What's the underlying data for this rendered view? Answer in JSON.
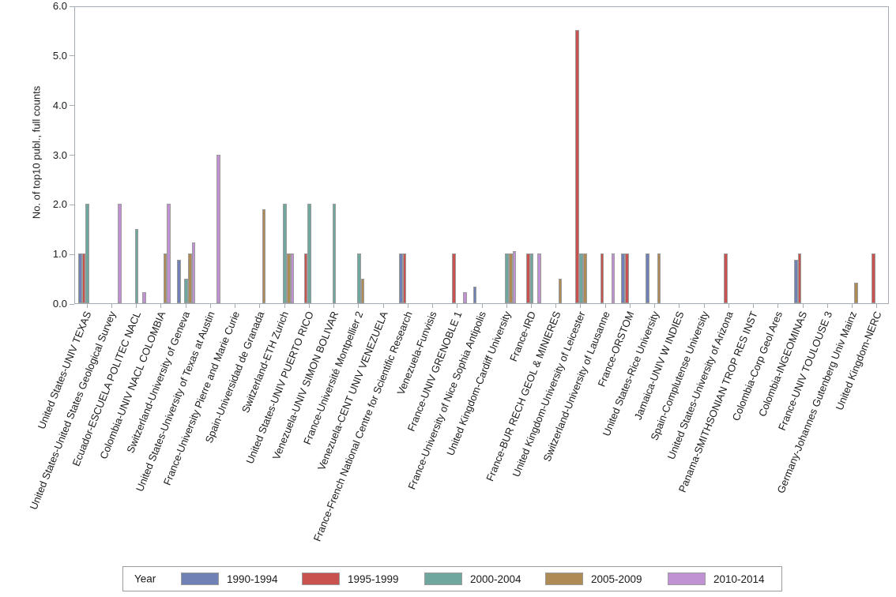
{
  "chart_data": {
    "type": "bar",
    "title": "",
    "ylabel": "No. of top10 publ., full counts",
    "xlabel": "",
    "ylim": [
      0,
      6
    ],
    "yticks": [
      "0.0",
      "1.0",
      "2.0",
      "3.0",
      "4.0",
      "5.0",
      "6.0"
    ],
    "grid": "off",
    "legend_position": "bottom",
    "legend_title": "Year",
    "categories": [
      "United States-UNIV TEXAS",
      "United States-United States Geological Survey",
      "Ecuador-ESCUELA POLITEC NACL",
      "Colombia-UNIV NACL COLOMBIA",
      "Switzerland-University of Geneva",
      "United States-University of Texas at Austin",
      "France-University Pierre and Marie Curie",
      "Spain-Universidad de Granada",
      "Switzerland-ETH Zurich",
      "United States-UNIV PUERTO RICO",
      "Venezuela-UNIV SIMON BOLIVAR",
      "France-Université Montpellier 2",
      "Venezuela-CENT UNIV VENEZUELA",
      "France-French National Centre for Scientific Research",
      "Venezuela-Funvisis",
      "France-UNIV GRENOBLE 1",
      "France-University of Nice Sophia Antipolis",
      "United Kingdom-Cardiff University",
      "France-IRD",
      "France-BUR RECH GEOL & MINIERES",
      "United Kingdom-University of Leicester",
      "Switzerland-University of Lausanne",
      "France-ORSTOM",
      "United States-Rice University",
      "Jamaica-UNIV W INDIES",
      "Spain-Complutense University",
      "United States-University of Arizona",
      "Panama-SMITHSONIAN TROP RES INST",
      "Colombia-Corp Geol Ares",
      "Colombia-INGEOMINAS",
      "France-UNIV TOULOUSE 3",
      "Germany-Johannes Gutenberg Univ Mainz",
      "United Kingdom-NERC"
    ],
    "series": [
      {
        "name": "1990-1994",
        "color": "#7081B5",
        "values": [
          1,
          0,
          0,
          0,
          0.87,
          0,
          0,
          0,
          0,
          0,
          0,
          0,
          0,
          1,
          0,
          0,
          0.34,
          0,
          0,
          0,
          0,
          0,
          1,
          1,
          0,
          0,
          0,
          0,
          0,
          0.87,
          0,
          0,
          0
        ]
      },
      {
        "name": "1995-1999",
        "color": "#C9514E",
        "values": [
          1,
          0,
          0,
          0,
          0,
          0,
          0,
          0,
          0,
          1,
          0,
          0,
          0,
          1,
          0,
          1,
          0,
          0,
          1,
          0,
          5.5,
          1,
          1,
          0,
          0,
          0,
          1,
          0,
          0,
          1,
          0,
          0,
          1
        ]
      },
      {
        "name": "2000-2004",
        "color": "#6FA79E",
        "values": [
          2,
          0,
          1.5,
          0,
          0.5,
          0,
          0,
          0,
          2,
          2,
          2,
          1,
          0,
          0,
          0,
          0,
          0,
          1,
          1,
          0,
          1,
          0,
          0,
          0,
          0,
          0,
          0,
          0,
          0,
          0,
          0,
          0,
          0
        ]
      },
      {
        "name": "2005-2009",
        "color": "#AE8A55",
        "values": [
          0,
          0,
          0,
          1,
          1,
          0,
          0,
          1.9,
          1,
          0,
          0,
          0.5,
          0,
          0,
          0,
          0,
          0,
          1,
          0,
          0.5,
          1,
          0,
          0,
          1,
          0,
          0,
          0,
          0,
          0,
          0,
          0,
          0.41,
          0
        ]
      },
      {
        "name": "2010-2014",
        "color": "#C091D3",
        "values": [
          0,
          2,
          0.22,
          2,
          1.22,
          3,
          0,
          0,
          1,
          0,
          0,
          0,
          0,
          0,
          0,
          0.23,
          0,
          1.05,
          1,
          0,
          0,
          1,
          0,
          0,
          0,
          0,
          0,
          0,
          0,
          0,
          0,
          0,
          0
        ]
      }
    ]
  }
}
